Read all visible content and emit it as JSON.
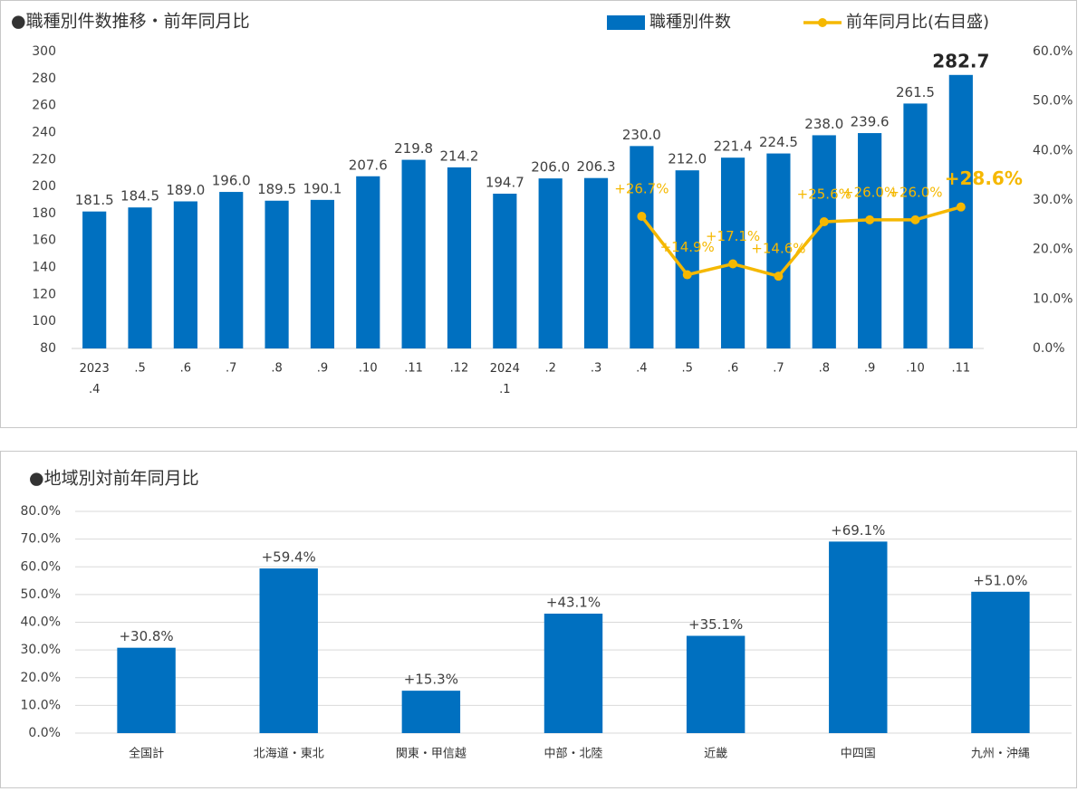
{
  "chart_data": [
    {
      "type": "combo",
      "title": "●職種別件数推移・前年同月比",
      "categories": [
        "2023\n.4",
        ".5",
        ".6",
        ".7",
        ".8",
        ".9",
        ".10",
        ".11",
        ".12",
        "2024\n.1",
        ".2",
        ".3",
        ".4",
        ".5",
        ".6",
        ".7",
        ".8",
        ".9",
        ".10",
        ".11"
      ],
      "series": [
        {
          "name": "職種別件数",
          "type": "bar",
          "color": "#0070c0",
          "values": [
            181.5,
            184.5,
            189.0,
            196.0,
            189.5,
            190.1,
            207.6,
            219.8,
            214.2,
            194.7,
            206.0,
            206.3,
            230.0,
            212.0,
            221.4,
            224.5,
            238.0,
            239.6,
            261.5,
            282.7
          ],
          "value_labels": [
            "181.5",
            "184.5",
            "189.0",
            "196.0",
            "189.5",
            "190.1",
            "207.6",
            "219.8",
            "214.2",
            "194.7",
            "206.0",
            "206.3",
            "230.0",
            "212.0",
            "221.4",
            "224.5",
            "238.0",
            "239.6",
            "261.5",
            "282.7"
          ]
        },
        {
          "name": "前年同月比(右目盛)",
          "type": "line",
          "axis": "y2",
          "color": "#f5b800",
          "values": [
            null,
            null,
            null,
            null,
            null,
            null,
            null,
            null,
            null,
            null,
            null,
            null,
            26.7,
            14.9,
            17.1,
            14.6,
            25.6,
            26.0,
            26.0,
            28.6
          ],
          "value_labels": [
            null,
            null,
            null,
            null,
            null,
            null,
            null,
            null,
            null,
            null,
            null,
            null,
            "+26.7%",
            "+14.9%",
            "+17.1%",
            "+14.6%",
            "+25.6%",
            "+26.0%",
            "+26.0%",
            "+28.6%"
          ]
        }
      ],
      "ylim": [
        80,
        300
      ],
      "yticks": [
        80,
        100,
        120,
        140,
        160,
        180,
        200,
        220,
        240,
        260,
        280,
        300
      ],
      "y2lim": [
        0,
        60
      ],
      "y2ticks": [
        {
          "value": 0,
          "label": "0.0%"
        },
        {
          "value": 10,
          "label": "10.0%"
        },
        {
          "value": 20,
          "label": "20.0%"
        },
        {
          "value": 30,
          "label": "30.0%"
        },
        {
          "value": 40,
          "label": "40.0%"
        },
        {
          "value": 50,
          "label": "50.0%"
        },
        {
          "value": 60,
          "label": "60.0%"
        }
      ],
      "grid": false,
      "legend": "top"
    },
    {
      "type": "bar",
      "title": "●地域別対前年同月比",
      "categories": [
        "全国計",
        "北海道・東北",
        "関東・甲信越",
        "中部・北陸",
        "近畿",
        "中四国",
        "九州・沖縄"
      ],
      "values": [
        30.8,
        59.4,
        15.3,
        43.1,
        35.1,
        69.1,
        51.0
      ],
      "value_labels": [
        "+30.8%",
        "+59.4%",
        "+15.3%",
        "+43.1%",
        "+35.1%",
        "+69.1%",
        "+51.0%"
      ],
      "color": "#0070c0",
      "ylim": [
        0,
        80
      ],
      "yticks": [
        {
          "value": 0,
          "label": "0.0%"
        },
        {
          "value": 10,
          "label": "10.0%"
        },
        {
          "value": 20,
          "label": "20.0%"
        },
        {
          "value": 30,
          "label": "30.0%"
        },
        {
          "value": 40,
          "label": "40.0%"
        },
        {
          "value": 50,
          "label": "50.0%"
        },
        {
          "value": 60,
          "label": "60.0%"
        },
        {
          "value": 70,
          "label": "70.0%"
        },
        {
          "value": 80,
          "label": "80.0%"
        }
      ],
      "grid": true
    }
  ]
}
